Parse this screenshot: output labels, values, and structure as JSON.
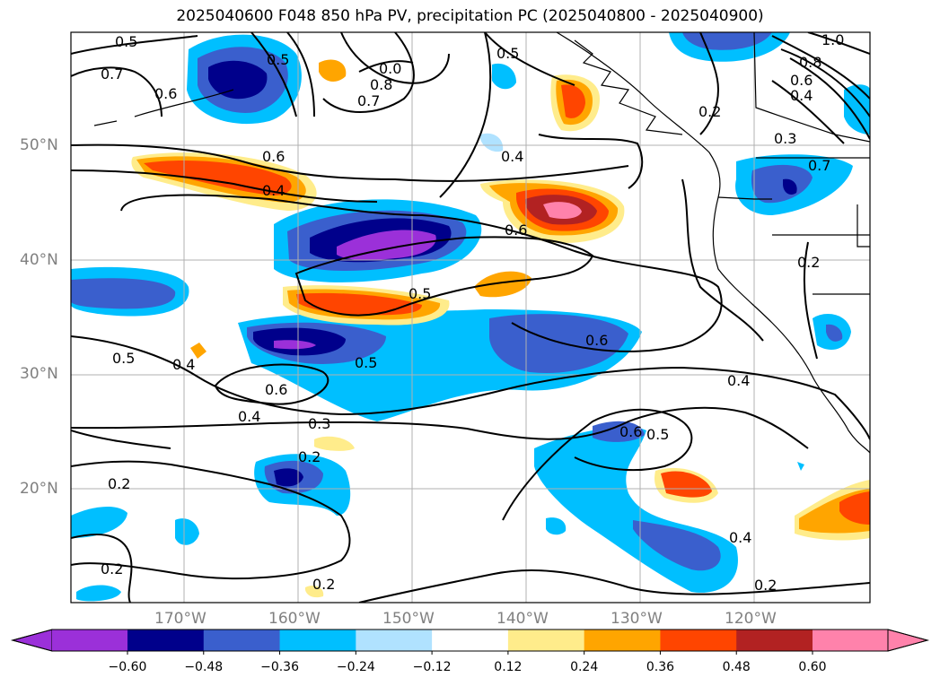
{
  "title": "2025040600 F048 850 hPa PV, precipitation PC (2025040800 - 2025040900)",
  "lat_labels": [
    "50°N",
    "40°N",
    "30°N",
    "20°N"
  ],
  "lon_labels": [
    "170°W",
    "160°W",
    "150°W",
    "140°W",
    "130°W",
    "120°W"
  ],
  "colorbar": {
    "ticks": [
      "−0.60",
      "−0.48",
      "−0.36",
      "−0.24",
      "−0.12",
      "0.12",
      "0.24",
      "0.36",
      "0.48",
      "0.60"
    ],
    "colors": [
      "#9b30d9",
      "#00008b",
      "#3a5fcd",
      "#00bfff",
      "#b0e2ff",
      "#ffffff",
      "#ffec8b",
      "#ffa500",
      "#ff4500",
      "#b22222",
      "#ff82ab"
    ]
  },
  "contour_labels": [
    "0.5",
    "0.7",
    "0.6",
    "0.5",
    "0.0",
    "0.8",
    "0.7",
    "0.5",
    "0.2",
    "0.4",
    "0.6",
    "0.4",
    "0.6",
    "0.5",
    "0.6",
    "0.5",
    "0.4",
    "0.5",
    "0.6",
    "0.4",
    "0.3",
    "0.2",
    "0.2",
    "0.6",
    "0.5",
    "0.4",
    "0.2",
    "0.2",
    "0.2",
    "0.4",
    "1.0",
    "0.8",
    "0.6",
    "0.4",
    "0.3",
    "0.2",
    "0.7"
  ]
}
